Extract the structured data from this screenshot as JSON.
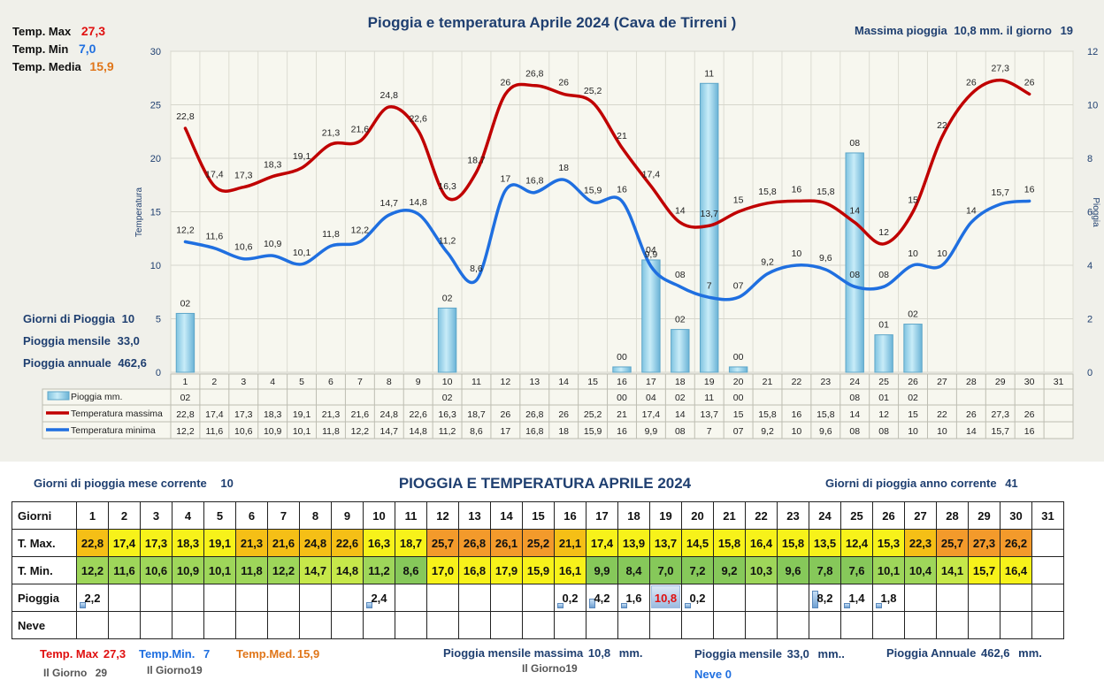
{
  "chart_data": {
    "type": "bar-line",
    "title": "Pioggia e temperatura Aprile 2024 (Cava de Tirreni )",
    "ylabel_left": "Temperatura",
    "ylabel_right": "Pioggia",
    "ylim_left": [
      0,
      30
    ],
    "ylim_right": [
      0,
      12
    ],
    "yticks_left": [
      "0",
      "5",
      "10",
      "15",
      "20",
      "25",
      "30"
    ],
    "yticks_right": [
      "0",
      "2",
      "4",
      "6",
      "8",
      "10",
      "12"
    ],
    "grid": true,
    "categories": [
      "1",
      "2",
      "3",
      "4",
      "5",
      "6",
      "7",
      "8",
      "9",
      "10",
      "11",
      "12",
      "13",
      "14",
      "15",
      "16",
      "17",
      "18",
      "19",
      "20",
      "21",
      "22",
      "23",
      "24",
      "25",
      "26",
      "27",
      "28",
      "29",
      "30",
      "31"
    ],
    "rain_values": [
      2.2,
      null,
      null,
      null,
      null,
      null,
      null,
      null,
      null,
      2.4,
      null,
      null,
      null,
      null,
      null,
      0.2,
      4.2,
      1.6,
      10.8,
      0.2,
      null,
      null,
      null,
      8.2,
      1.4,
      1.8,
      null,
      null,
      null,
      null,
      null
    ],
    "rain_labels": [
      "02",
      "",
      "",
      "",
      "",
      "",
      "",
      "",
      "",
      "02",
      "",
      "",
      "",
      "",
      "",
      "00",
      "04",
      "02",
      "11",
      "00",
      "",
      "",
      "",
      "08",
      "01",
      "02",
      "",
      "",
      "",
      "",
      ""
    ],
    "tmax_values": [
      22.8,
      17.4,
      17.3,
      18.3,
      19.1,
      21.3,
      21.6,
      24.8,
      22.6,
      16.3,
      18.7,
      26,
      26.8,
      26,
      25.2,
      21,
      17.4,
      14,
      13.7,
      15,
      15.8,
      16,
      15.8,
      14,
      12,
      15,
      22,
      26,
      27.3,
      26,
      null
    ],
    "tmax_labels": [
      "22,8",
      "17,4",
      "17,3",
      "18,3",
      "19,1",
      "21,3",
      "21,6",
      "24,8",
      "22,6",
      "16,3",
      "18,7",
      "26",
      "26,8",
      "26",
      "25,2",
      "21",
      "17,4",
      "14",
      "13,7",
      "15",
      "15,8",
      "16",
      "15,8",
      "14",
      "12",
      "15",
      "22",
      "26",
      "27,3",
      "26",
      ""
    ],
    "tmin_values": [
      12.2,
      11.6,
      10.6,
      10.9,
      10.1,
      11.8,
      12.2,
      14.7,
      14.8,
      11.2,
      8.6,
      17,
      16.8,
      18,
      15.9,
      16,
      9.9,
      8,
      7,
      7,
      9.2,
      10,
      9.6,
      8,
      8,
      10,
      10,
      14,
      15.7,
      16,
      null
    ],
    "tmin_labels": [
      "12,2",
      "11,6",
      "10,6",
      "10,9",
      "10,1",
      "11,8",
      "12,2",
      "14,7",
      "14,8",
      "11,2",
      "8,6",
      "17",
      "16,8",
      "18",
      "15,9",
      "16",
      "9,9",
      "08",
      "7",
      "07",
      "9,2",
      "10",
      "9,6",
      "08",
      "08",
      "10",
      "10",
      "14",
      "15,7",
      "16",
      ""
    ],
    "series_names": [
      "Pioggia mm.",
      "Temperatura massima",
      "Temperatura minima"
    ],
    "colors": {
      "tmax": "#c00000",
      "tmin": "#1f6fe0",
      "rain": "#9fd3ea"
    }
  },
  "chart_stats": {
    "tmax_label": "Temp. Max",
    "tmax_value": "27,3",
    "tmin_label": "Temp. Min",
    "tmin_value": "7,0",
    "tmed_label": "Temp. Media",
    "tmed_value": "15,9",
    "max_rain_label": "Massima pioggia",
    "max_rain_value": "10,8 mm.",
    "max_rain_day_label": "il giorno",
    "max_rain_day": "19",
    "rain_days_label": "Giorni di Pioggia",
    "rain_days_value": "10",
    "monthly_rain_label": "Pioggia mensile",
    "monthly_rain_value": "33,0",
    "annual_rain_label": "Pioggia annuale",
    "annual_rain_value": "462,6"
  },
  "table": {
    "title": "PIOGGIA E TEMPERATURA APRILE 2024",
    "rain_days_month_label": "Giorni di pioggia mese corrente",
    "rain_days_month_value": "10",
    "rain_days_year_label": "Giorni di pioggia anno corrente",
    "rain_days_year_value": "41",
    "row_days": "Giorni",
    "row_tmax": "T. Max.",
    "row_tmin": "T. Min.",
    "row_rain": "Pioggia",
    "row_snow": "Neve",
    "days": [
      "1",
      "2",
      "3",
      "4",
      "5",
      "6",
      "7",
      "8",
      "9",
      "10",
      "11",
      "12",
      "13",
      "14",
      "15",
      "16",
      "17",
      "18",
      "19",
      "20",
      "21",
      "22",
      "23",
      "24",
      "25",
      "26",
      "27",
      "28",
      "29",
      "30",
      "31"
    ],
    "tmax": [
      "22,8",
      "17,4",
      "17,3",
      "18,3",
      "19,1",
      "21,3",
      "21,6",
      "24,8",
      "22,6",
      "16,3",
      "18,7",
      "25,7",
      "26,8",
      "26,1",
      "25,2",
      "21,1",
      "17,4",
      "13,9",
      "13,7",
      "14,5",
      "15,8",
      "16,4",
      "15,8",
      "13,5",
      "12,4",
      "15,3",
      "22,3",
      "25,7",
      "27,3",
      "26,2",
      ""
    ],
    "tmax_colors": [
      "#f5bf16",
      "#f7f21a",
      "#f7f21a",
      "#f7f21a",
      "#f7f21a",
      "#f5bf16",
      "#f5bf16",
      "#f5bf16",
      "#f5bf16",
      "#f7f21a",
      "#f7f21a",
      "#f39a2b",
      "#f39a2b",
      "#f39a2b",
      "#f39a2b",
      "#f5bf16",
      "#f7f21a",
      "#f7f21a",
      "#f7f21a",
      "#f7f21a",
      "#f7f21a",
      "#f7f21a",
      "#f7f21a",
      "#f7f21a",
      "#f7f21a",
      "#f7f21a",
      "#f5bf16",
      "#f39a2b",
      "#f39a2b",
      "#f39a2b",
      "#ffffff"
    ],
    "tmin": [
      "12,2",
      "11,6",
      "10,6",
      "10,9",
      "10,1",
      "11,8",
      "12,2",
      "14,7",
      "14,8",
      "11,2",
      "8,6",
      "17,0",
      "16,8",
      "17,9",
      "15,9",
      "16,1",
      "9,9",
      "8,4",
      "7,0",
      "7,2",
      "9,2",
      "10,3",
      "9,6",
      "7,8",
      "7,6",
      "10,1",
      "10,4",
      "14,1",
      "15,7",
      "16,4",
      ""
    ],
    "tmin_colors": [
      "#9ed65a",
      "#9ed65a",
      "#9ed65a",
      "#9ed65a",
      "#9ed65a",
      "#9ed65a",
      "#9ed65a",
      "#c6e84a",
      "#c6e84a",
      "#9ed65a",
      "#86c85a",
      "#f7f21a",
      "#f7f21a",
      "#f7f21a",
      "#f7f21a",
      "#f7f21a",
      "#86c85a",
      "#86c85a",
      "#86c85a",
      "#86c85a",
      "#86c85a",
      "#9ed65a",
      "#86c85a",
      "#86c85a",
      "#86c85a",
      "#9ed65a",
      "#9ed65a",
      "#c6e84a",
      "#f7f21a",
      "#f7f21a",
      "#ffffff"
    ],
    "rain": [
      "2,2",
      "",
      "",
      "",
      "",
      "",
      "",
      "",
      "",
      "2,4",
      "",
      "",
      "",
      "",
      "",
      "0,2",
      "4,2",
      "1,6",
      "10,8",
      "0,2",
      "",
      "",
      "",
      "8,2",
      "1,4",
      "1,8",
      "",
      "",
      "",
      "",
      ""
    ],
    "rain_amount": [
      2.2,
      0,
      0,
      0,
      0,
      0,
      0,
      0,
      0,
      2.4,
      0,
      0,
      0,
      0,
      0,
      0.2,
      4.2,
      1.6,
      10.8,
      0.2,
      0,
      0,
      0,
      8.2,
      1.4,
      1.8,
      0,
      0,
      0,
      0,
      0
    ],
    "rain_highlight_day": "19",
    "snow": [
      "",
      "",
      "",
      "",
      "",
      "",
      "",
      "",
      "",
      "",
      "",
      "",
      "",
      "",
      "",
      "",
      "",
      "",
      "",
      "",
      "",
      "",
      "",
      "",
      "",
      "",
      "",
      "",
      "",
      "",
      ""
    ]
  },
  "footer": {
    "tmax_label": "Temp. Max",
    "tmax_value": "27,3",
    "tmax_day_label": "Il Giorno",
    "tmax_day": "29",
    "tmin_label": "Temp.Min.",
    "tmin_value": "7",
    "tmin_day_label": "Il Giorno",
    "tmin_day": "19",
    "tmed_label": "Temp.Med.",
    "tmed_value": "15,9",
    "max_rain_label": "Pioggia mensile massima",
    "max_rain_value": "10,8",
    "max_rain_unit": "mm.",
    "max_rain_day_label": "Il Giorno",
    "max_rain_day": "19",
    "monthly_rain_label": "Pioggia mensile",
    "monthly_rain_value": "33,0",
    "monthly_rain_unit": "mm..",
    "annual_rain_label": "Pioggia Annuale",
    "annual_rain_value": "462,6",
    "annual_rain_unit": "mm.",
    "snow_label": "Neve",
    "snow_value": "0"
  }
}
